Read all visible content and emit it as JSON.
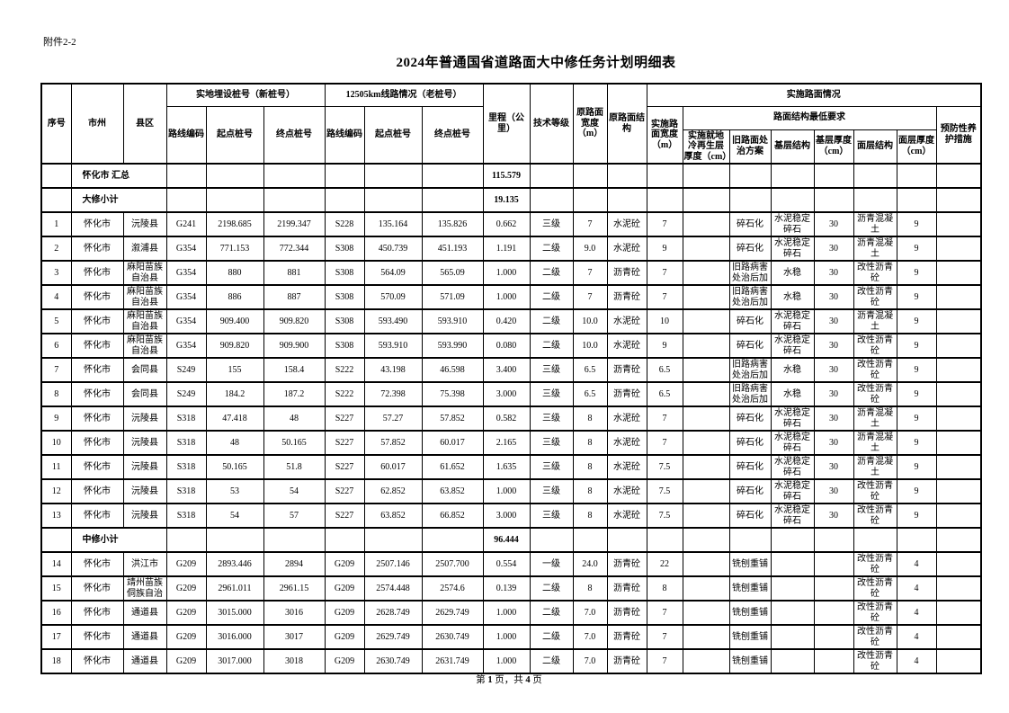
{
  "attachment_label": "附件2-2",
  "title": "2024年普通国省道路面大中修任务计划明细表",
  "table": {
    "header": {
      "sn": "序号",
      "city": "市州",
      "county": "县区",
      "new_stake_group": "实地埋设桩号（新桩号）",
      "old_stake_group": "12505km线路情况（老桩号）",
      "route_code_new": "路线编码",
      "start_stake_new": "起点桩号",
      "end_stake_new": "终点桩号",
      "route_code_old": "路线编码",
      "start_stake_old": "起点桩号",
      "end_stake_old": "终点桩号",
      "mileage": "里程（公里）",
      "tech_grade": "技术等级",
      "orig_width": "原路面宽度（m）",
      "orig_structure": "原路面结构",
      "impl_group": "实施路面情况",
      "impl_width": "实施路面宽度（m）",
      "min_req_group": "路面结构最低要求",
      "cold_recycle": "实施就地冷再生层厚度（cm）",
      "old_treatment": "旧路面处治方案",
      "base_structure": "基层结构",
      "base_thickness": "基层厚度（cm）",
      "surface_structure": "面层结构",
      "surface_thickness": "面层厚度（cm）",
      "preventive": "预防性养护措施"
    },
    "rows": [
      {
        "type": "summary",
        "label": "怀化市 汇总",
        "mileage": "115.579"
      },
      {
        "type": "summary",
        "label": "大修小计",
        "mileage": "19.135"
      },
      {
        "type": "data",
        "cells": [
          "1",
          "怀化市",
          "沅陵县",
          "G241",
          "2198.685",
          "2199.347",
          "S228",
          "135.164",
          "135.826",
          "0.662",
          "三级",
          "7",
          "水泥砼",
          "7",
          "",
          "碎石化",
          "水泥稳定碎石",
          "30",
          "沥青混凝土",
          "9",
          ""
        ]
      },
      {
        "type": "data",
        "cells": [
          "2",
          "怀化市",
          "溆浦县",
          "G354",
          "771.153",
          "772.344",
          "S308",
          "450.739",
          "451.193",
          "1.191",
          "二级",
          "9.0",
          "水泥砼",
          "9",
          "",
          "碎石化",
          "水泥稳定碎石",
          "30",
          "沥青混凝土",
          "9",
          ""
        ]
      },
      {
        "type": "data",
        "cells": [
          "3",
          "怀化市",
          "麻阳苗族自治县",
          "G354",
          "880",
          "881",
          "S308",
          "564.09",
          "565.09",
          "1.000",
          "二级",
          "7",
          "沥青砼",
          "7",
          "",
          "旧路病害处治后加",
          "水稳",
          "30",
          "改性沥青砼",
          "9",
          ""
        ]
      },
      {
        "type": "data",
        "cells": [
          "4",
          "怀化市",
          "麻阳苗族自治县",
          "G354",
          "886",
          "887",
          "S308",
          "570.09",
          "571.09",
          "1.000",
          "二级",
          "7",
          "沥青砼",
          "7",
          "",
          "旧路病害处治后加",
          "水稳",
          "30",
          "改性沥青砼",
          "9",
          ""
        ]
      },
      {
        "type": "data",
        "cells": [
          "5",
          "怀化市",
          "麻阳苗族自治县",
          "G354",
          "909.400",
          "909.820",
          "S308",
          "593.490",
          "593.910",
          "0.420",
          "二级",
          "10.0",
          "水泥砼",
          "10",
          "",
          "碎石化",
          "水泥稳定碎石",
          "30",
          "沥青混凝土",
          "9",
          ""
        ]
      },
      {
        "type": "data",
        "cells": [
          "6",
          "怀化市",
          "麻阳苗族自治县",
          "G354",
          "909.820",
          "909.900",
          "S308",
          "593.910",
          "593.990",
          "0.080",
          "二级",
          "10.0",
          "水泥砼",
          "9",
          "",
          "碎石化",
          "水泥稳定碎石",
          "30",
          "改性沥青砼",
          "9",
          ""
        ]
      },
      {
        "type": "data",
        "cells": [
          "7",
          "怀化市",
          "会同县",
          "S249",
          "155",
          "158.4",
          "S222",
          "43.198",
          "46.598",
          "3.400",
          "三级",
          "6.5",
          "沥青砼",
          "6.5",
          "",
          "旧路病害处治后加",
          "水稳",
          "30",
          "改性沥青砼",
          "9",
          ""
        ]
      },
      {
        "type": "data",
        "cells": [
          "8",
          "怀化市",
          "会同县",
          "S249",
          "184.2",
          "187.2",
          "S222",
          "72.398",
          "75.398",
          "3.000",
          "三级",
          "6.5",
          "沥青砼",
          "6.5",
          "",
          "旧路病害处治后加",
          "水稳",
          "30",
          "改性沥青砼",
          "9",
          ""
        ]
      },
      {
        "type": "data",
        "cells": [
          "9",
          "怀化市",
          "沅陵县",
          "S318",
          "47.418",
          "48",
          "S227",
          "57.27",
          "57.852",
          "0.582",
          "三级",
          "8",
          "水泥砼",
          "7",
          "",
          "碎石化",
          "水泥稳定碎石",
          "30",
          "沥青混凝土",
          "9",
          ""
        ]
      },
      {
        "type": "data",
        "cells": [
          "10",
          "怀化市",
          "沅陵县",
          "S318",
          "48",
          "50.165",
          "S227",
          "57.852",
          "60.017",
          "2.165",
          "三级",
          "8",
          "水泥砼",
          "7",
          "",
          "碎石化",
          "水泥稳定碎石",
          "30",
          "沥青混凝土",
          "9",
          ""
        ]
      },
      {
        "type": "data",
        "cells": [
          "11",
          "怀化市",
          "沅陵县",
          "S318",
          "50.165",
          "51.8",
          "S227",
          "60.017",
          "61.652",
          "1.635",
          "三级",
          "8",
          "水泥砼",
          "7.5",
          "",
          "碎石化",
          "水泥稳定碎石",
          "30",
          "沥青混凝土",
          "9",
          ""
        ]
      },
      {
        "type": "data",
        "cells": [
          "12",
          "怀化市",
          "沅陵县",
          "S318",
          "53",
          "54",
          "S227",
          "62.852",
          "63.852",
          "1.000",
          "三级",
          "8",
          "水泥砼",
          "7.5",
          "",
          "碎石化",
          "水泥稳定碎石",
          "30",
          "改性沥青砼",
          "9",
          ""
        ]
      },
      {
        "type": "data",
        "cells": [
          "13",
          "怀化市",
          "沅陵县",
          "S318",
          "54",
          "57",
          "S227",
          "63.852",
          "66.852",
          "3.000",
          "三级",
          "8",
          "水泥砼",
          "7.5",
          "",
          "碎石化",
          "水泥稳定碎石",
          "30",
          "改性沥青砼",
          "9",
          ""
        ]
      },
      {
        "type": "summary",
        "label": "中修小计",
        "mileage": "96.444"
      },
      {
        "type": "data",
        "cells": [
          "14",
          "怀化市",
          "洪江市",
          "G209",
          "2893.446",
          "2894",
          "G209",
          "2507.146",
          "2507.700",
          "0.554",
          "一级",
          "24.0",
          "沥青砼",
          "22",
          "",
          "铣刨重铺",
          "",
          "",
          "改性沥青砼",
          "4",
          ""
        ]
      },
      {
        "type": "data",
        "cells": [
          "15",
          "怀化市",
          "靖州苗族侗族自治",
          "G209",
          "2961.011",
          "2961.15",
          "G209",
          "2574.448",
          "2574.6",
          "0.139",
          "二级",
          "8",
          "沥青砼",
          "8",
          "",
          "铣刨重铺",
          "",
          "",
          "改性沥青砼",
          "4",
          ""
        ]
      },
      {
        "type": "data",
        "cells": [
          "16",
          "怀化市",
          "通道县",
          "G209",
          "3015.000",
          "3016",
          "G209",
          "2628.749",
          "2629.749",
          "1.000",
          "二级",
          "7.0",
          "沥青砼",
          "7",
          "",
          "铣刨重铺",
          "",
          "",
          "改性沥青砼",
          "4",
          ""
        ]
      },
      {
        "type": "data",
        "cells": [
          "17",
          "怀化市",
          "通道县",
          "G209",
          "3016.000",
          "3017",
          "G209",
          "2629.749",
          "2630.749",
          "1.000",
          "二级",
          "7.0",
          "沥青砼",
          "7",
          "",
          "铣刨重铺",
          "",
          "",
          "改性沥青砼",
          "4",
          ""
        ]
      },
      {
        "type": "data",
        "cells": [
          "18",
          "怀化市",
          "通道县",
          "G209",
          "3017.000",
          "3018",
          "G209",
          "2630.749",
          "2631.749",
          "1.000",
          "二级",
          "7.0",
          "沥青砼",
          "7",
          "",
          "铣刨重铺",
          "",
          "",
          "改性沥青砼",
          "4",
          ""
        ]
      }
    ]
  },
  "footer": {
    "parts": [
      "第 ",
      "1",
      " 页，共 ",
      "4",
      " 页"
    ]
  }
}
